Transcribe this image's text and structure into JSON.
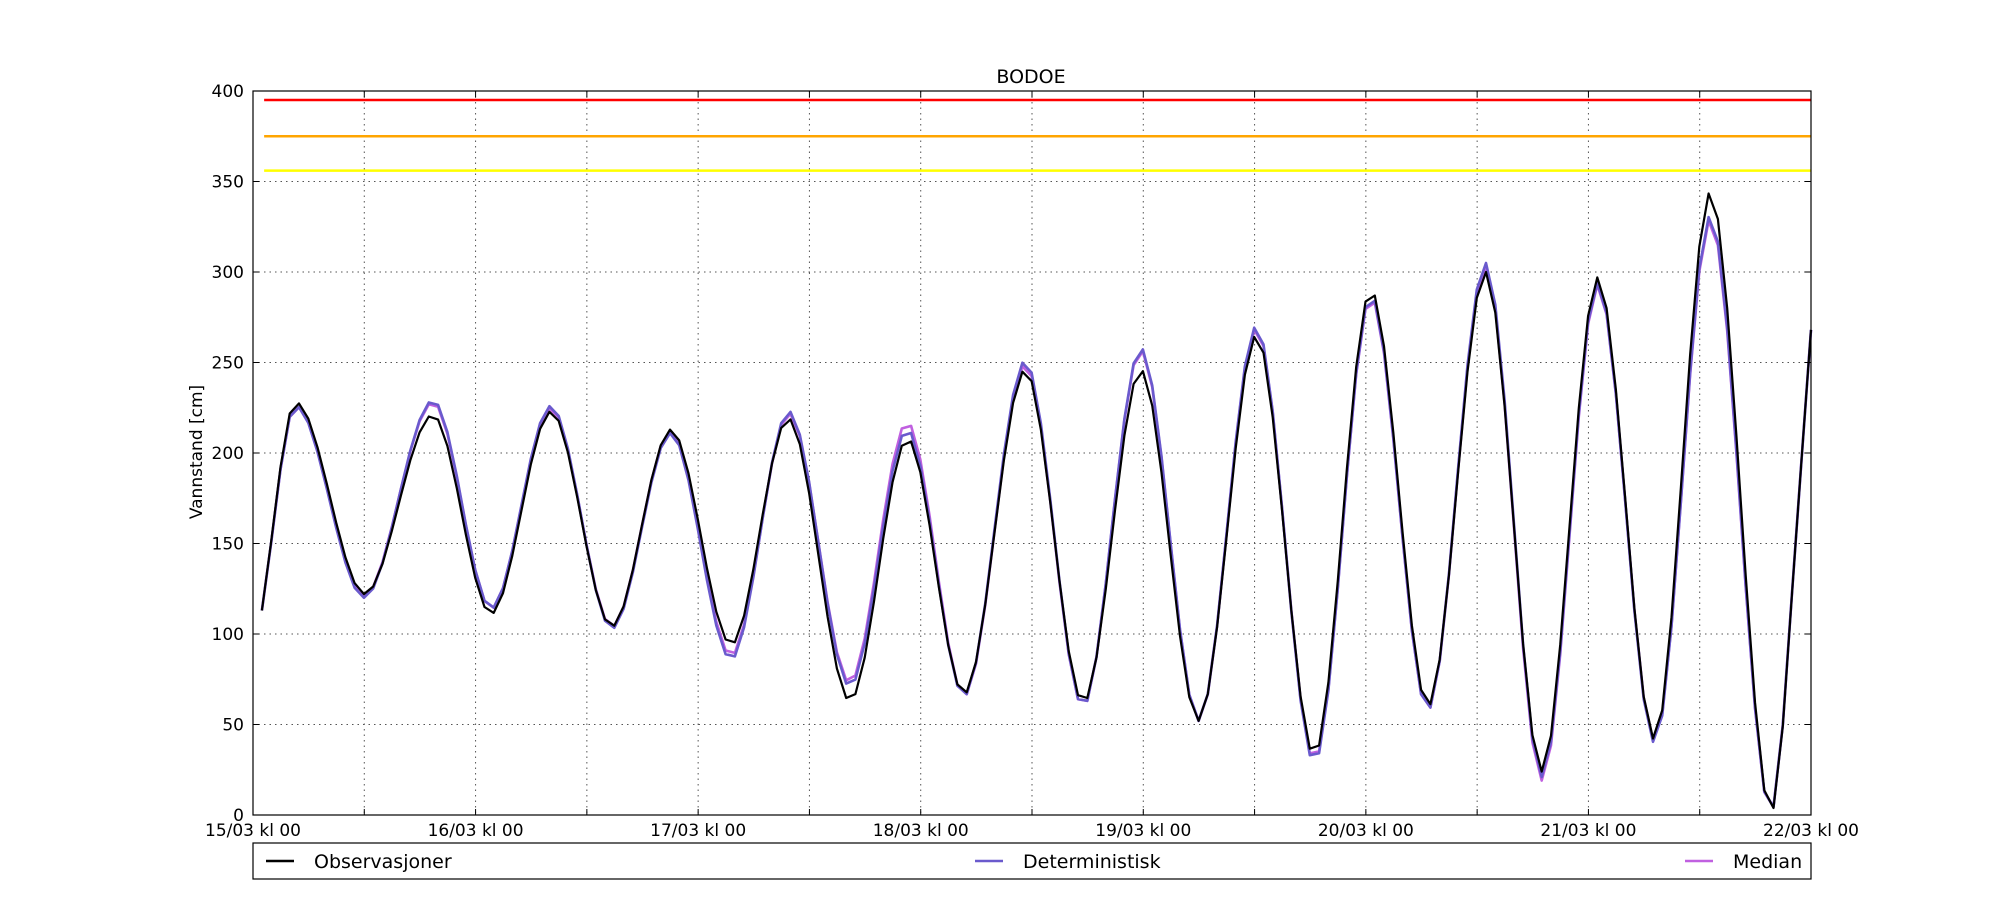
{
  "chart_data": {
    "type": "line",
    "title": "BODOE",
    "xlabel": "",
    "ylabel": "Vannstand [cm]",
    "ylim": [
      0,
      400
    ],
    "xlim_days": [
      0,
      7
    ],
    "yticks": [
      0,
      50,
      100,
      150,
      200,
      250,
      300,
      350,
      400
    ],
    "xtick_labels": [
      "15/03 kl 00",
      "16/03 kl 00",
      "17/03 kl 00",
      "18/03 kl 00",
      "19/03 kl 00",
      "20/03 kl 00",
      "21/03 kl 00",
      "22/03 kl 00"
    ],
    "grid": true,
    "legend_position": "bottom",
    "thresholds": [
      {
        "value": 395,
        "color": "#ff0000"
      },
      {
        "value": 375,
        "color": "#ffa500"
      },
      {
        "value": 356,
        "color": "#ffff00"
      }
    ],
    "series": [
      {
        "name": "Observasjoner",
        "color": "#000000",
        "x": [
          0.04,
          0.19,
          0.5,
          0.81,
          1.07,
          1.34,
          1.61,
          1.88,
          2.15,
          2.41,
          2.68,
          2.94,
          3.2,
          3.47,
          3.73,
          3.99,
          4.25,
          4.51,
          4.77,
          5.02,
          5.28,
          5.54,
          5.79,
          6.04,
          6.3,
          6.55,
          6.81,
          6.96,
          7.0
        ],
        "y": [
          113,
          228,
          122,
          221,
          111,
          223,
          104,
          213,
          94,
          219,
          63,
          208,
          67,
          246,
          62,
          246,
          52,
          265,
          33,
          290,
          60,
          300,
          24,
          297,
          42,
          344,
          2,
          200,
          268
        ]
      },
      {
        "name": "Deterministisk",
        "color": "#6a5acd",
        "x": [
          0.04,
          0.19,
          0.5,
          0.81,
          1.07,
          1.34,
          1.61,
          1.88,
          2.15,
          2.41,
          2.68,
          2.94,
          3.2,
          3.47,
          3.73,
          3.99,
          4.25,
          4.51,
          4.77,
          5.02,
          5.28,
          5.54,
          5.79,
          6.04,
          6.3,
          6.55,
          6.81,
          6.96,
          7.0
        ],
        "y": [
          113,
          226,
          120,
          229,
          114,
          226,
          103,
          211,
          86,
          223,
          71,
          213,
          66,
          251,
          60,
          258,
          52,
          270,
          29,
          287,
          58,
          305,
          21,
          294,
          40,
          331,
          2,
          200,
          268
        ]
      },
      {
        "name": "Median",
        "color": "#c060e0",
        "x": [
          0.04,
          0.19,
          0.5,
          0.81,
          1.07,
          1.34,
          1.61,
          1.88,
          2.15,
          2.41,
          2.68,
          2.94,
          3.2,
          3.47,
          3.73,
          3.99,
          4.25,
          4.51,
          4.77,
          5.02,
          5.28,
          5.54,
          5.79,
          6.04,
          6.3,
          6.55,
          6.81,
          6.96,
          7.0
        ],
        "y": [
          113,
          226,
          121,
          228,
          114,
          225,
          104,
          212,
          88,
          222,
          73,
          217,
          66,
          249,
          60,
          257,
          52,
          269,
          30,
          286,
          58,
          303,
          19,
          293,
          41,
          329,
          2,
          200,
          268
        ]
      }
    ]
  }
}
